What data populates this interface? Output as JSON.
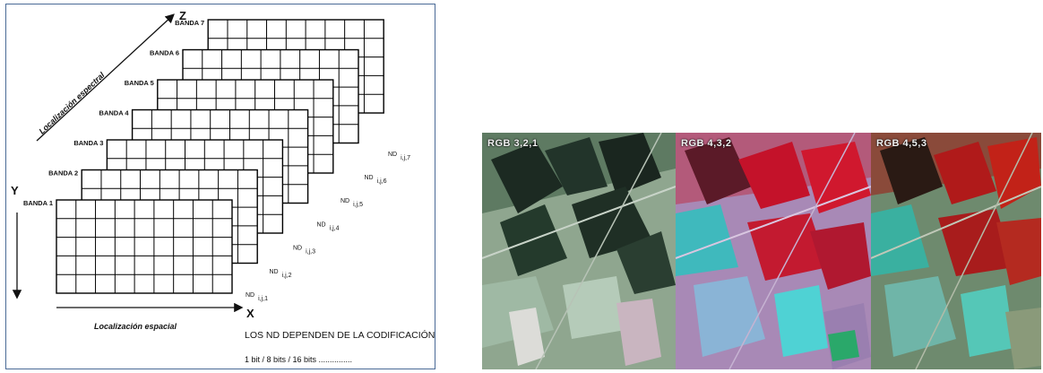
{
  "diagram": {
    "axes": {
      "z": "Z",
      "y": "Y",
      "x": "X"
    },
    "axis_titles": {
      "spectral": "Localización espectral",
      "spatial": "Localización espacial"
    },
    "bands": [
      "BANDA 1",
      "BANDA 2",
      "BANDA 3",
      "BANDA 4",
      "BANDA 5",
      "BANDA 6",
      "BANDA 7"
    ],
    "nd_labels": [
      {
        "base": "ND",
        "sub": "i,j,1"
      },
      {
        "base": "ND",
        "sub": "i,j,2"
      },
      {
        "base": "ND",
        "sub": "i,j,3"
      },
      {
        "base": "ND",
        "sub": "i,j,4"
      },
      {
        "base": "ND",
        "sub": "i,j,5"
      },
      {
        "base": "ND",
        "sub": "i,j,6"
      },
      {
        "base": "ND",
        "sub": "i,j,7"
      }
    ],
    "note_line1": "LOS ND DEPENDEN DE LA CODIFICACIÓN",
    "note_line2": "1 bit / 8 bits / 16 bits ..............."
  },
  "composites": [
    {
      "label": "RGB 3,2,1"
    },
    {
      "label": "RGB 4,3,2"
    },
    {
      "label": "RGB 4,5,3"
    }
  ],
  "colors": {
    "panel_border": "#4a6a96",
    "grid_line": "#000000"
  }
}
